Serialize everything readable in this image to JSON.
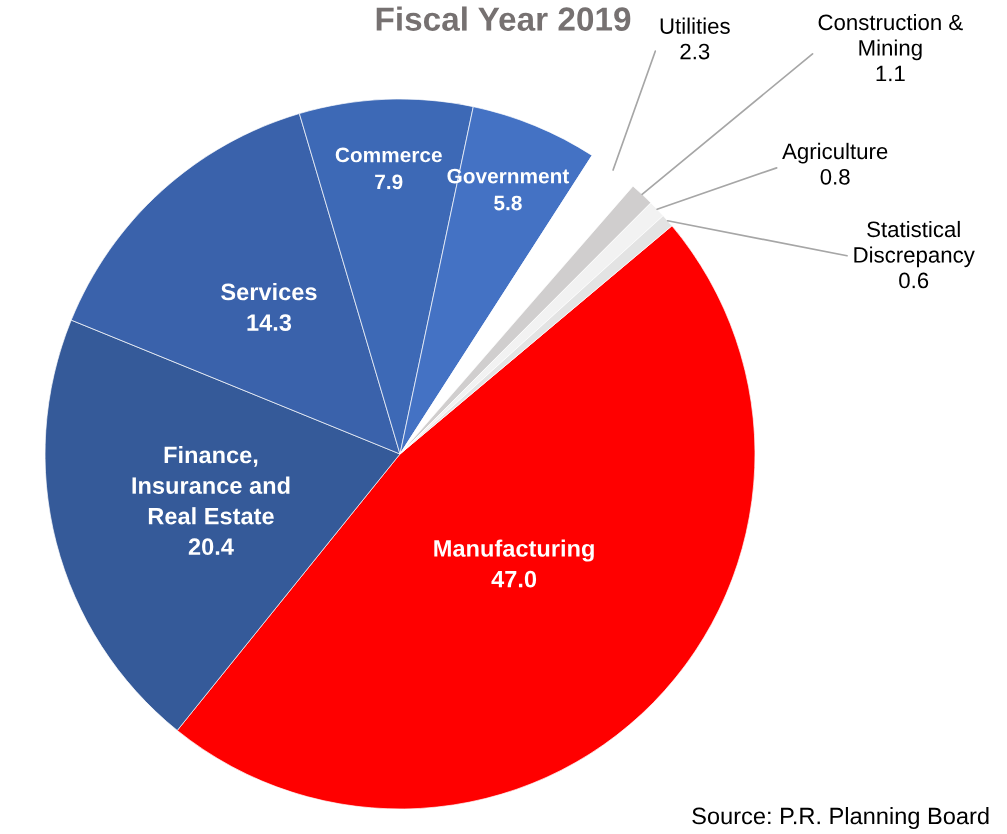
{
  "chart_data": {
    "type": "pie",
    "title": "Fiscal Year 2019",
    "categories": [
      "Manufacturing",
      "Finance,\nInsurance and\nReal Estate",
      "Services",
      "Commerce",
      "Government",
      "Utilities",
      "Construction &\nMining",
      "Agriculture",
      "Statistical\nDiscrepancy"
    ],
    "values": [
      47.0,
      20.4,
      14.3,
      7.9,
      5.8,
      2.3,
      1.1,
      0.8,
      0.6
    ],
    "value_labels": [
      "47.0",
      "20.4",
      "14.3",
      "7.9",
      "5.8",
      "2.3",
      "1.1",
      "0.8",
      "0.6"
    ],
    "colors": [
      "#ff0000",
      "#355a99",
      "#3a62ab",
      "#3d69b6",
      "#4472c4",
      "#ffffff",
      "#d0cece",
      "#f2f2f2",
      "#e3e3e3"
    ],
    "annotations": [
      "Source: P.R. Planning Board"
    ],
    "legend": false
  }
}
